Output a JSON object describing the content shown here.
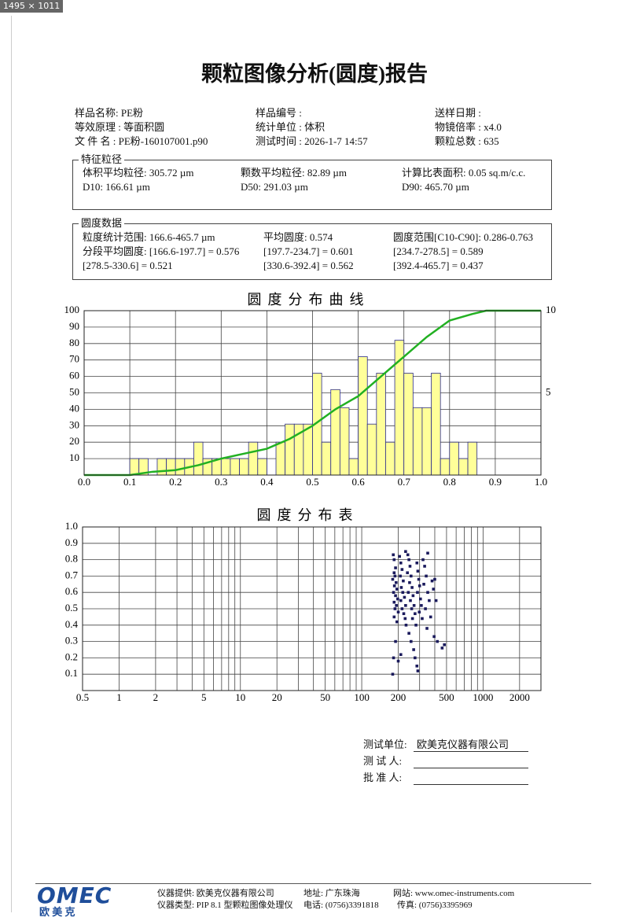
{
  "viewer": {
    "size_label": "1495 × 1011"
  },
  "header": {
    "title": "颗粒图像分析(圆度)报告"
  },
  "info": [
    [
      "样品名称: PE粉",
      "样品编号 :",
      "送样日期 :"
    ],
    [
      "等效原理 : 等面积圆",
      "统计单位 : 体积",
      "物镜倍率 : x4.0"
    ],
    [
      "文 件 名 : PE粉-160107001.p90",
      "测试时间 : 2026-1-7 14:57",
      "颗粒总数 : 635"
    ]
  ],
  "features": {
    "title": "特征粒径",
    "rows": [
      [
        "体积平均粒径: 305.72 µm",
        "颗数平均粒径: 82.89 µm",
        "计算比表面积: 0.05 sq.m/c.c."
      ],
      [
        "D10: 166.61 µm",
        "D50: 291.03 µm",
        "D90: 465.70 µm"
      ]
    ]
  },
  "roundness": {
    "title": "圆度数据",
    "rows": [
      [
        "粒度统计范围: 166.6-465.7 µm",
        "平均圆度: 0.574",
        "圆度范围[C10-C90]: 0.286-0.763"
      ],
      [
        "分段平均圆度: [166.6-197.7] = 0.576",
        "[197.7-234.7] = 0.601",
        "[234.7-278.5] = 0.589"
      ],
      [
        "[278.5-330.6] = 0.521",
        "[330.6-392.4] = 0.562",
        "[392.4-465.7] = 0.437"
      ]
    ]
  },
  "chart_data": [
    {
      "type": "histogram",
      "title": "圆度分布曲线",
      "color": "#ffff99",
      "edge_color": "#2b2b8c",
      "bins": [
        0.1,
        0.12,
        0.14,
        0.16,
        0.18,
        0.2,
        0.22,
        0.24,
        0.26,
        0.28,
        0.3,
        0.32,
        0.34,
        0.36,
        0.38,
        0.4,
        0.42,
        0.44,
        0.46,
        0.48,
        0.5,
        0.52,
        0.54,
        0.56,
        0.58,
        0.6,
        0.62,
        0.64,
        0.66,
        0.68,
        0.7,
        0.72,
        0.74,
        0.76,
        0.78,
        0.8,
        0.82,
        0.84,
        0.86
      ],
      "counts": [
        10,
        10,
        0,
        10,
        10,
        10,
        10,
        20,
        10,
        10,
        10,
        10,
        10,
        20,
        10,
        0,
        20,
        31,
        31,
        31,
        62,
        20,
        52,
        41,
        10,
        72,
        31,
        62,
        20,
        82,
        62,
        41,
        41,
        62,
        10,
        20,
        10,
        20
      ],
      "cumulative": {
        "color": "#22b022",
        "x": [
          0,
          0.1,
          0.15,
          0.2,
          0.25,
          0.3,
          0.35,
          0.4,
          0.45,
          0.5,
          0.55,
          0.6,
          0.65,
          0.7,
          0.75,
          0.8,
          0.85,
          0.88,
          1.0
        ],
        "values": [
          0,
          0,
          2,
          3,
          6,
          10,
          13,
          16,
          22,
          30,
          40,
          48,
          60,
          72,
          84,
          94,
          98,
          100,
          100
        ]
      },
      "xlim": [
        0,
        1
      ],
      "xticks": [
        {
          "value": 0,
          "label": "0.0"
        },
        0.1,
        0.2,
        0.3,
        0.4,
        0.5,
        0.6,
        0.7,
        0.8,
        0.9,
        {
          "value": 1,
          "label": "1.0"
        }
      ],
      "ylim": [
        0,
        100
      ],
      "yticks": [
        10,
        20,
        30,
        40,
        50,
        60,
        70,
        80,
        90,
        100
      ],
      "y2lim": [
        0,
        10
      ],
      "y2ticks": [
        5,
        10
      ],
      "grid": true
    },
    {
      "type": "scatter",
      "title": "圆度分布表",
      "color": "#1a1a5c",
      "log_x": true,
      "xlim": [
        0.5,
        3000
      ],
      "xticks": [
        0.5,
        1,
        2,
        5,
        10,
        20,
        50,
        100,
        200,
        500,
        1000,
        2000
      ],
      "x_minor_ticks": [
        3,
        4,
        6,
        7,
        8,
        9,
        30,
        40,
        60,
        70,
        80,
        90,
        300,
        400,
        600,
        700,
        800,
        900,
        3000
      ],
      "ylim": [
        0,
        1
      ],
      "yticks": [
        0.1,
        0.2,
        0.3,
        0.4,
        0.5,
        0.6,
        0.7,
        0.8,
        0.9,
        {
          "value": 1,
          "label": "1.0"
        }
      ],
      "grid": true,
      "x": [
        182,
        185,
        190,
        185,
        188,
        180,
        192,
        186,
        195,
        183,
        190,
        198,
        185,
        193,
        188,
        200,
        185,
        195,
        183,
        180,
        190,
        205,
        210,
        215,
        208,
        220,
        212,
        218,
        225,
        210,
        230,
        215,
        222,
        228,
        232,
        240,
        245,
        250,
        238,
        255,
        248,
        260,
        242,
        265,
        252,
        270,
        258,
        275,
        262,
        280,
        245,
        255,
        268,
        275,
        285,
        290,
        295,
        300,
        288,
        305,
        310,
        298,
        315,
        285,
        290,
        320,
        330,
        340,
        325,
        350,
        360,
        335,
        370,
        345,
        380,
        390,
        400,
        410,
        395,
        420,
        460,
        480,
        350,
        230,
        210,
        200
      ],
      "values": [
        0.83,
        0.8,
        0.75,
        0.72,
        0.7,
        0.68,
        0.66,
        0.64,
        0.62,
        0.6,
        0.58,
        0.56,
        0.54,
        0.52,
        0.5,
        0.48,
        0.45,
        0.42,
        0.2,
        0.1,
        0.3,
        0.82,
        0.78,
        0.74,
        0.7,
        0.67,
        0.63,
        0.6,
        0.57,
        0.55,
        0.52,
        0.5,
        0.47,
        0.44,
        0.4,
        0.83,
        0.8,
        0.76,
        0.72,
        0.7,
        0.66,
        0.63,
        0.6,
        0.58,
        0.55,
        0.52,
        0.5,
        0.47,
        0.44,
        0.4,
        0.35,
        0.3,
        0.25,
        0.2,
        0.78,
        0.73,
        0.68,
        0.64,
        0.6,
        0.56,
        0.52,
        0.48,
        0.44,
        0.15,
        0.12,
        0.8,
        0.76,
        0.7,
        0.65,
        0.6,
        0.55,
        0.5,
        0.45,
        0.38,
        0.67,
        0.62,
        0.68,
        0.55,
        0.33,
        0.3,
        0.26,
        0.28,
        0.84,
        0.85,
        0.22,
        0.18
      ]
    }
  ],
  "signature": {
    "unit_label": "测试单位:",
    "unit": "欧美克仪器有限公司",
    "tester_label": "测 试 人:",
    "approver_label": "批 准 人:"
  },
  "footer": {
    "logo": "OMEC",
    "logo_cn": "欧 美 克",
    "provider": "仪器提供: 欧美克仪器有限公司",
    "model": "仪器类型: PIP 8.1 型颗粒图像处理仪",
    "address": "地址: 广东珠海",
    "phone": "电话: (0756)3391818",
    "website": "网站: www.omec-instruments.com",
    "fax": "传真: (0756)3395969"
  }
}
